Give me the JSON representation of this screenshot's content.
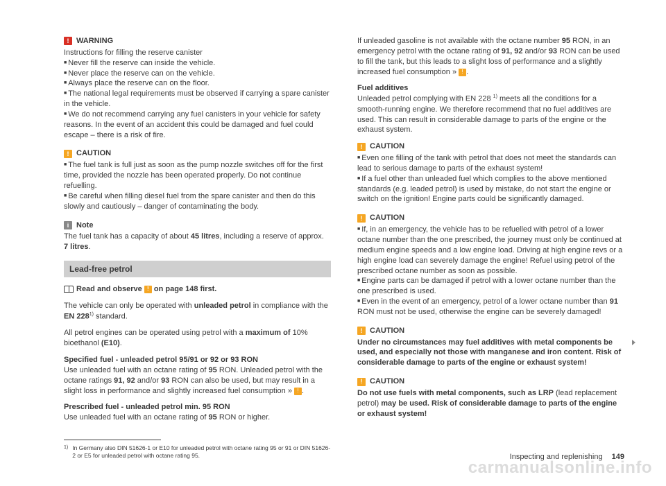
{
  "col1": {
    "warning": {
      "title": "WARNING",
      "intro": "Instructions for filling the reserve canister",
      "b1": "Never fill the reserve can inside the vehicle.",
      "b2": "Never place the reserve can on the vehicle.",
      "b3": "Always place the reserve can on the floor.",
      "b4": "The national legal requirements must be observed if carrying a spare canister in the vehicle.",
      "b5": "We do not recommend carrying any fuel canisters in your vehicle for safety reasons. In the event of an accident this could be damaged and fuel could escape – there is a risk of fire."
    },
    "caution1": {
      "title": "CAUTION",
      "b1": "The fuel tank is full just as soon as the pump nozzle switches off for the first time, provided the nozzle has been operated properly. Do not continue refuelling.",
      "b2": "Be careful when filling diesel fuel from the spare canister and then do this slowly and cautiously – danger of contaminating the body."
    },
    "note": {
      "title": "Note",
      "text1": "The fuel tank has a capacity of about ",
      "text_b1": "45 litres",
      "text2": ", including a reserve of approx. ",
      "text_b2": "7 litres",
      "text3": "."
    },
    "section_header": "Lead-free petrol",
    "read_observe": {
      "pre": "Read and observe ",
      "post": " on page 148 first."
    },
    "p1": {
      "t1": "The vehicle can only be operated with ",
      "b1": "unleaded petrol",
      "t2": " in compliance with the ",
      "b2": "EN 228",
      "sup": "1)",
      "t3": " standard."
    },
    "p2": {
      "t1": "All petrol engines can be operated using petrol with a ",
      "b1": "maximum of",
      "t2": " 10% bioethanol ",
      "b2": "(E10)",
      "t3": "."
    },
    "p3_head": "Specified fuel - unleaded petrol 95/91 or 92 or 93 RON",
    "p3": {
      "t1": "Use unleaded fuel with an octane rating of ",
      "b1": "95",
      "t2": " RON. Unleaded petrol with the octane ratings ",
      "b2": "91, 92",
      "t3": " and/or ",
      "b3": "93",
      "t4": " RON can also be used, but may result in a slight loss in performance and slightly increased fuel consumption » "
    },
    "p4_head": "Prescribed fuel - unleaded petrol min. 95 RON",
    "p4": {
      "t1": "Use unleaded fuel with an octane rating of ",
      "b1": "95",
      "t2": " RON or higher."
    },
    "footnote": {
      "num": "1)",
      "text": "In Germany also DIN 51626-1 or E10 for unleaded petrol with octane rating 95 or 91 or DIN 51626-2 or E5 for unleaded petrol with octane rating 95."
    }
  },
  "col2": {
    "p1": {
      "t1": "If unleaded gasoline is not available with the octane number ",
      "b1": "95",
      "t2": " RON, in an emergency petrol with the octane rating of ",
      "b2": "91, 92",
      "t3": " and/or ",
      "b3": "93",
      "t4": " RON can be used to fill the tank, but this leads to a slight loss of performance and a slightly increased fuel consumption » "
    },
    "p2_head": "Fuel additives",
    "p2": {
      "t1": "Unleaded petrol complying with EN 228 ",
      "sup": "1)",
      "t2": " meets all the conditions for a smooth-running engine. We therefore recommend that no fuel additives are used. This can result in considerable damage to parts of the engine or the exhaust system."
    },
    "caution2": {
      "title": "CAUTION",
      "b1": "Even one filling of the tank with petrol that does not meet the standards can lead to serious damage to parts of the exhaust system!",
      "b2": "If a fuel other than unleaded fuel which complies to the above mentioned standards (e.g. leaded petrol) is used by mistake, do not start the engine or switch on the ignition! Engine parts could be significantly damaged."
    },
    "caution3": {
      "title": "CAUTION",
      "b1": "If, in an emergency, the vehicle has to be refuelled with petrol of a lower octane number than the one prescribed, the journey must only be continued at medium engine speeds and a low engine load. Driving at high engine revs or a high engine load can severely damage the engine! Refuel using petrol of the prescribed octane number as soon as possible.",
      "b2": "Engine parts can be damaged if petrol with a lower octane number than the one prescribed is used.",
      "b3_t1": "Even in the event of an emergency, petrol of a lower octane number than ",
      "b3_b1": "91",
      "b3_t2": " RON must not be used, otherwise the engine can be severely damaged!"
    },
    "caution4": {
      "title": "CAUTION",
      "text": "Under no circumstances may fuel additives with metal components be used, and especially not those with manganese and iron content. Risk of considerable damage to parts of the engine or exhaust system!"
    },
    "caution5": {
      "title": "CAUTION",
      "t1": "Do not use fuels with metal components, such as LRP",
      "t2": " (lead replacement petrol) ",
      "t3": "may be used. Risk of considerable damage to parts of the engine or exhaust system!"
    }
  },
  "footer": {
    "section": "Inspecting and replenishing",
    "page": "149"
  },
  "watermark": "carmanualsonline.info"
}
